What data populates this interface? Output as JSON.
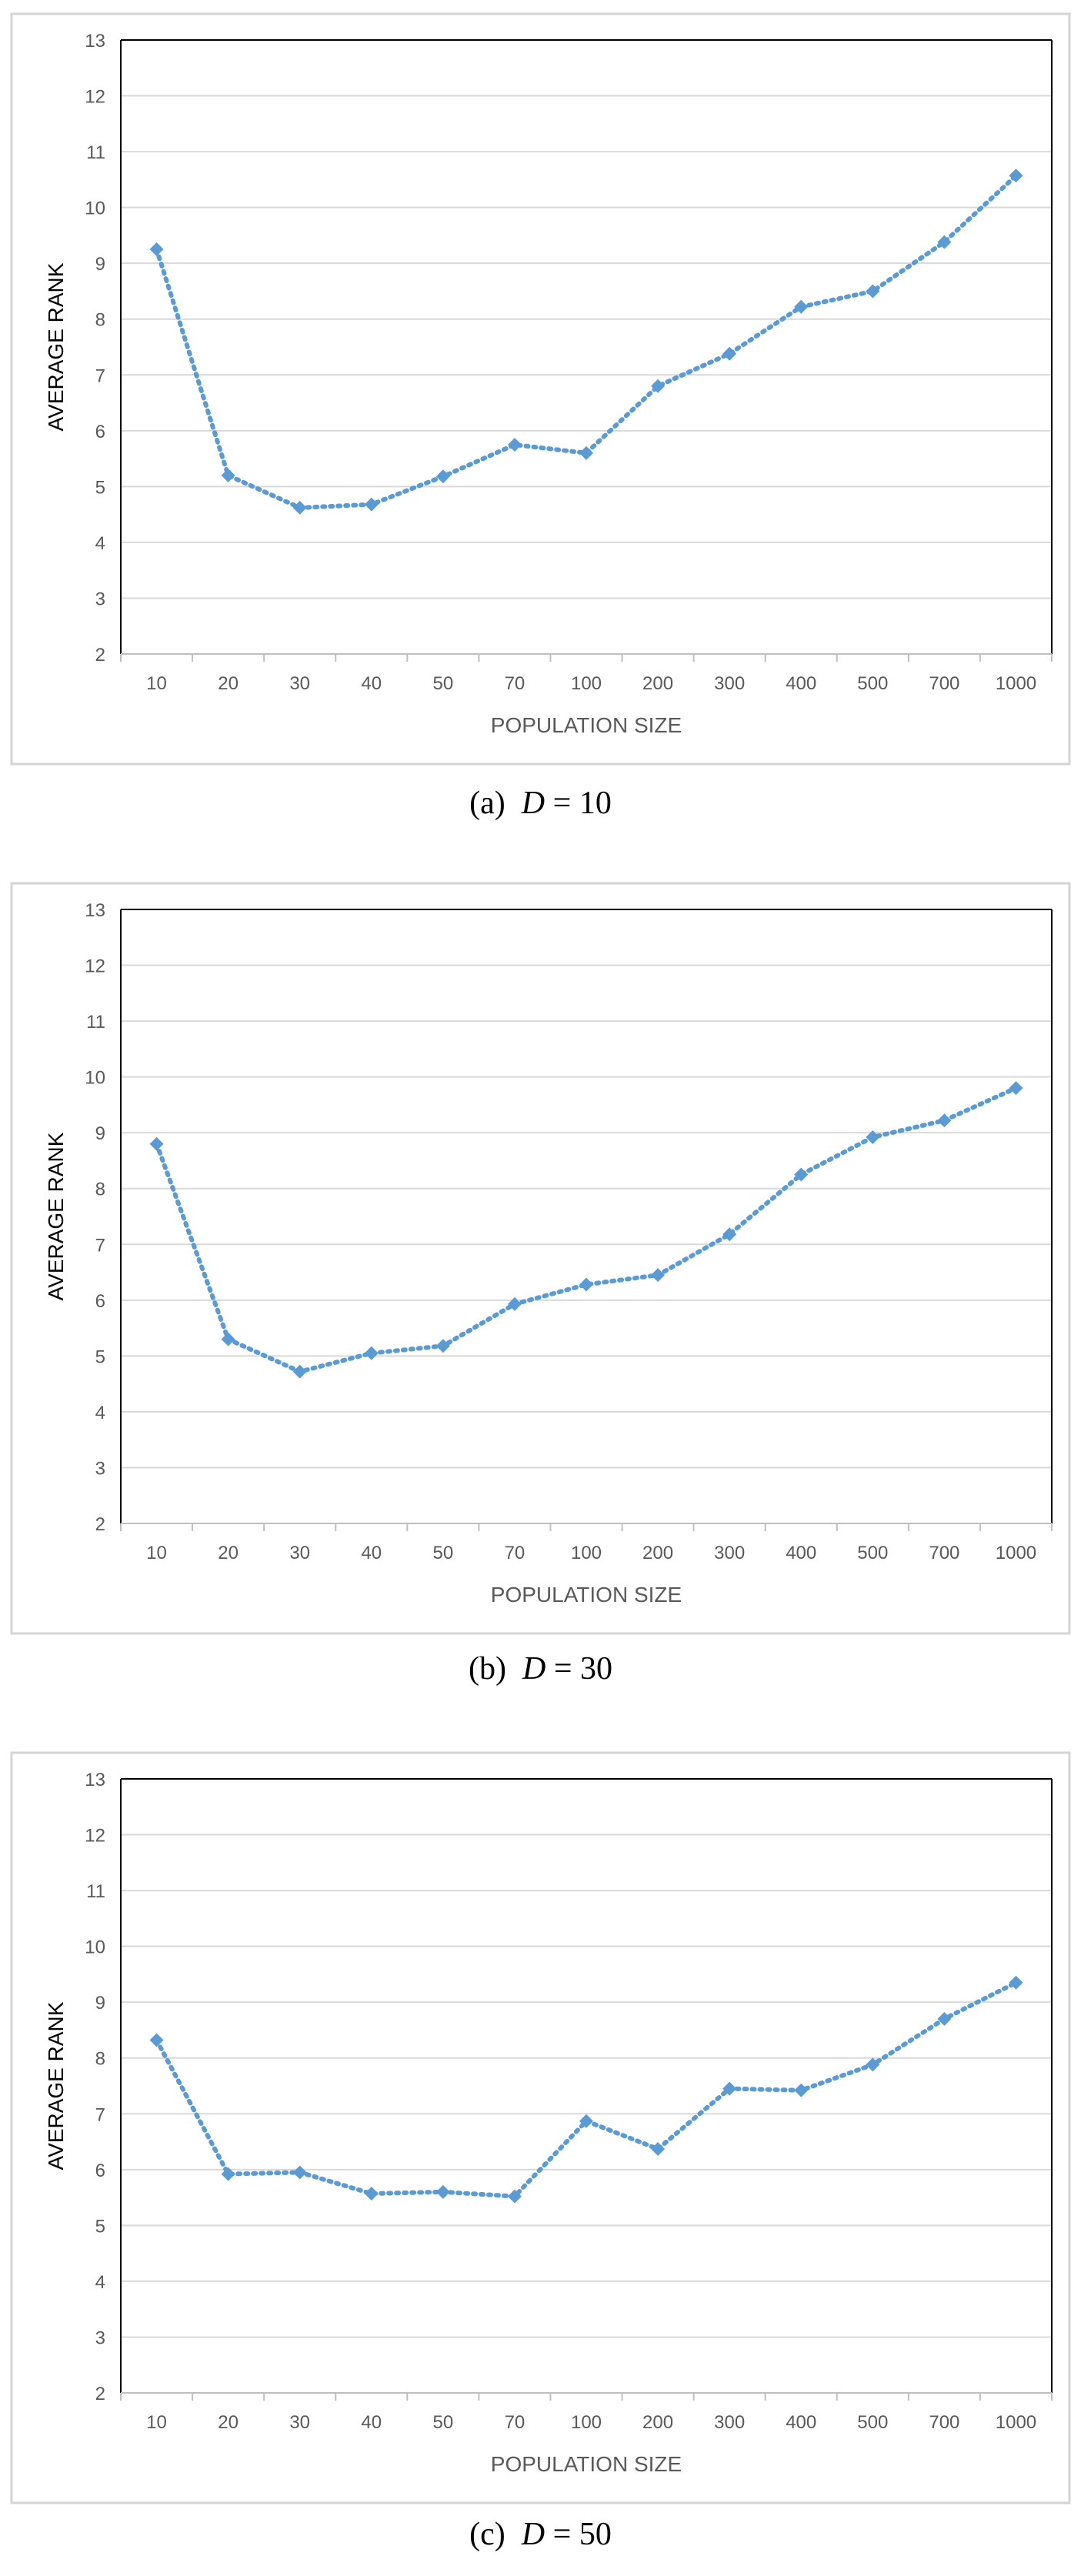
{
  "chart_data": [
    {
      "type": "line",
      "categories": [
        "10",
        "20",
        "30",
        "40",
        "50",
        "70",
        "100",
        "200",
        "300",
        "400",
        "500",
        "700",
        "1000"
      ],
      "series": [
        {
          "values": [
            9.25,
            5.2,
            4.62,
            4.68,
            5.18,
            5.75,
            5.6,
            6.8,
            7.38,
            8.22,
            8.5,
            9.38,
            10.57
          ]
        }
      ],
      "title": "",
      "xlabel": "POPULATION SIZE",
      "ylabel": "AVERAGE RANK",
      "ylim": [
        2,
        13
      ],
      "yticks": [
        "2",
        "3",
        "4",
        "5",
        "6",
        "7",
        "8",
        "9",
        "10",
        "11",
        "12",
        "13"
      ],
      "grid": true,
      "color": "#5B9BD5",
      "caption": {
        "letter": "(a)",
        "var": "D",
        "eq": " = 10"
      }
    },
    {
      "type": "line",
      "categories": [
        "10",
        "20",
        "30",
        "40",
        "50",
        "70",
        "100",
        "200",
        "300",
        "400",
        "500",
        "700",
        "1000"
      ],
      "series": [
        {
          "values": [
            8.8,
            5.3,
            4.72,
            5.05,
            5.18,
            5.93,
            6.28,
            6.45,
            7.18,
            8.25,
            8.92,
            9.22,
            9.8
          ]
        }
      ],
      "title": "",
      "xlabel": "POPULATION SIZE",
      "ylabel": "AVERAGE RANK",
      "ylim": [
        2,
        13
      ],
      "yticks": [
        "2",
        "3",
        "4",
        "5",
        "6",
        "7",
        "8",
        "9",
        "10",
        "11",
        "12",
        "13"
      ],
      "grid": true,
      "color": "#5B9BD5",
      "caption": {
        "letter": "(b)",
        "var": "D",
        "eq": " = 30"
      }
    },
    {
      "type": "line",
      "categories": [
        "10",
        "20",
        "30",
        "40",
        "50",
        "70",
        "100",
        "200",
        "300",
        "400",
        "500",
        "700",
        "1000"
      ],
      "series": [
        {
          "values": [
            8.32,
            5.92,
            5.95,
            5.57,
            5.6,
            5.52,
            6.87,
            6.37,
            7.45,
            7.42,
            7.88,
            8.7,
            9.35
          ]
        }
      ],
      "title": "",
      "xlabel": "POPULATION SIZE",
      "ylabel": "AVERAGE RANK",
      "ylim": [
        2,
        13
      ],
      "yticks": [
        "2",
        "3",
        "4",
        "5",
        "6",
        "7",
        "8",
        "9",
        "10",
        "11",
        "12",
        "13"
      ],
      "grid": true,
      "color": "#5B9BD5",
      "caption": {
        "letter": "(c)",
        "var": "D",
        "eq": " = 50"
      }
    }
  ]
}
